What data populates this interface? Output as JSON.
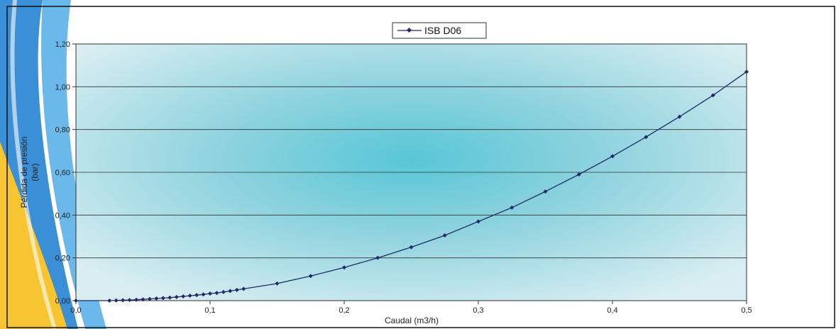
{
  "chart_data": {
    "type": "line",
    "title": "",
    "xlabel": "Caudal (m3/h)",
    "ylabel_lines": [
      "Pérdida de presión",
      "(bar)"
    ],
    "xlim": [
      0,
      0.5
    ],
    "ylim": [
      0,
      1.2
    ],
    "x_ticks": [
      "0,0",
      "0,1",
      "0,2",
      "0,3",
      "0,4",
      "0,5"
    ],
    "y_ticks": [
      "0,00",
      "0,20",
      "0,40",
      "0,60",
      "0,80",
      "1,00",
      "1,20"
    ],
    "grid": true,
    "legend_position": "top-center",
    "series": [
      {
        "name": "ISB D06",
        "color": "#1f2a6b",
        "x": [
          0,
          0.025,
          0.03,
          0.035,
          0.04,
          0.045,
          0.05,
          0.055,
          0.06,
          0.065,
          0.07,
          0.075,
          0.08,
          0.085,
          0.09,
          0.095,
          0.1,
          0.105,
          0.11,
          0.115,
          0.12,
          0.125,
          0.15,
          0.175,
          0.2,
          0.225,
          0.25,
          0.275,
          0.3,
          0.325,
          0.35,
          0.375,
          0.4,
          0.425,
          0.45,
          0.475,
          0.5
        ],
        "y": [
          0,
          0,
          0.001,
          0.002,
          0.003,
          0.004,
          0.006,
          0.008,
          0.01,
          0.012,
          0.014,
          0.017,
          0.02,
          0.023,
          0.026,
          0.029,
          0.033,
          0.036,
          0.04,
          0.045,
          0.05,
          0.055,
          0.08,
          0.115,
          0.155,
          0.2,
          0.25,
          0.305,
          0.37,
          0.435,
          0.51,
          0.59,
          0.675,
          0.765,
          0.86,
          0.96,
          1.07
        ]
      }
    ]
  }
}
